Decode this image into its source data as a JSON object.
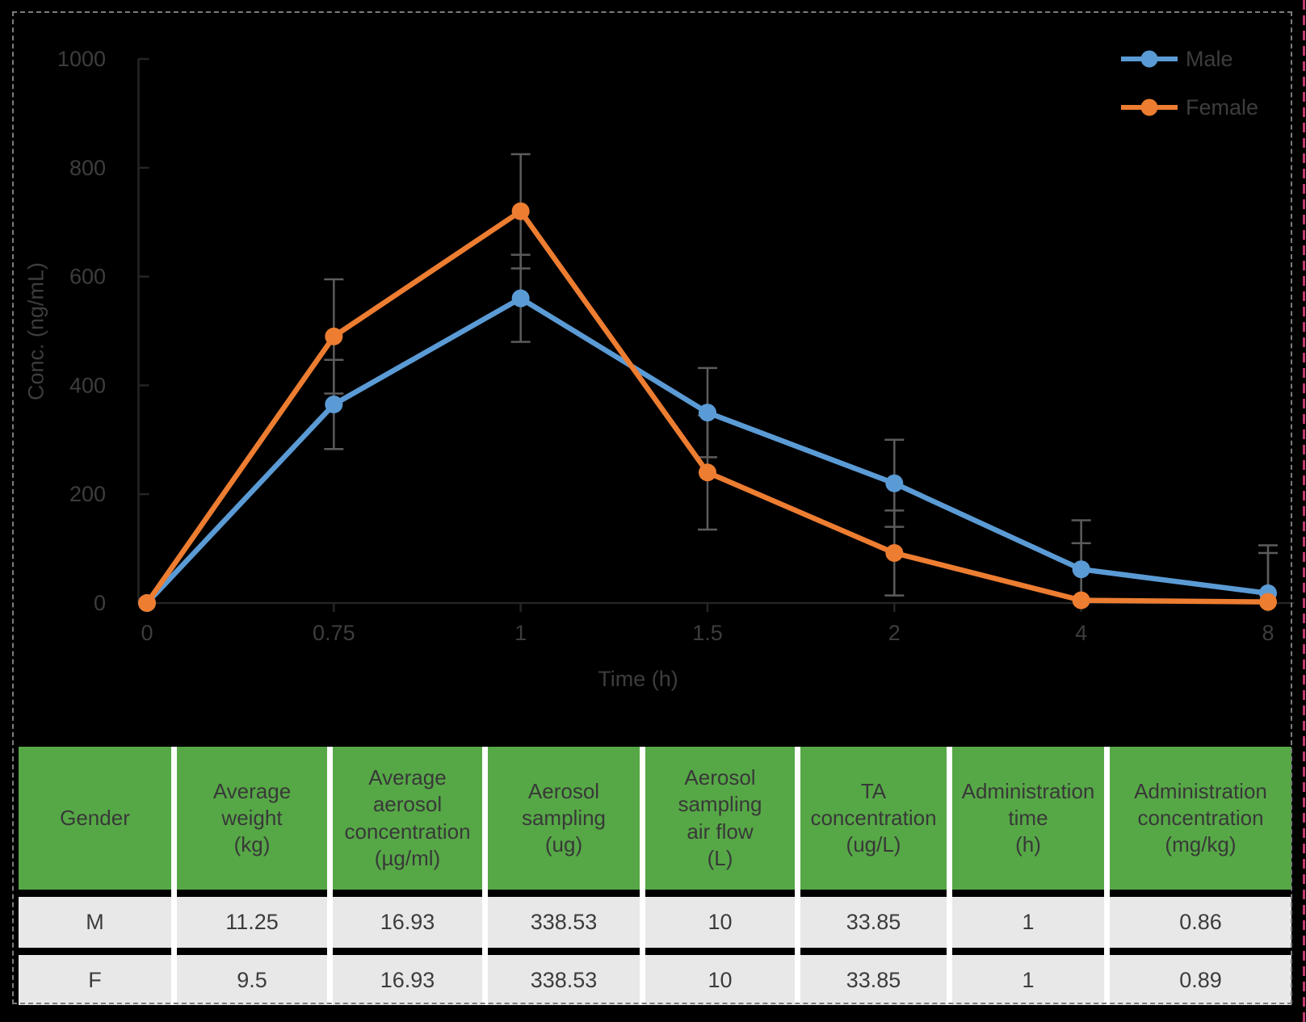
{
  "page": {
    "background_color": "#000000",
    "dashed_border_color": "#7c7c7c",
    "right_edge_line_color": "#c23a6e"
  },
  "chart_data": {
    "type": "line",
    "title": "",
    "xlabel": "Time (h)",
    "ylabel": "Conc. (ng/mL)",
    "categories": [
      "0",
      "0.75",
      "1",
      "1.5",
      "2",
      "4",
      "8"
    ],
    "yticks": [
      0,
      200,
      400,
      600,
      800,
      1000
    ],
    "ylim": [
      0,
      1000
    ],
    "grid": false,
    "legend_position": "top-right",
    "marker": "circle",
    "axis_color": "#252525",
    "tick_label_color": "#3d3d3d",
    "error_bar_color": "#5c5c5c",
    "series": [
      {
        "name": "Male",
        "color": "#5b9bd5",
        "values": [
          0,
          365,
          560,
          350,
          220,
          62,
          18
        ],
        "errors": [
          0,
          82,
          80,
          82,
          80,
          90,
          88
        ]
      },
      {
        "name": "Female",
        "color": "#ed7d31",
        "values": [
          0,
          490,
          720,
          240,
          92,
          5,
          2
        ],
        "errors": [
          0,
          105,
          105,
          105,
          78,
          105,
          90
        ]
      }
    ]
  },
  "table": {
    "header_bg_color": "#56a846",
    "row_bg_color": "#e8e8e8",
    "separator_color": "#ffffff",
    "columns": [
      "Gender",
      "Average\nweight\n(kg)",
      "Average\naerosol\nconcentration\n(µg/ml)",
      "Aerosol\nsampling\n(ug)",
      "Aerosol\nsampling\nair flow\n(L)",
      "TA\nconcentration\n(ug/L)",
      "Administration\ntime\n(h)",
      "Administration\nconcentration\n(mg/kg)"
    ],
    "rows": [
      [
        "M",
        "11.25",
        "16.93",
        "338.53",
        "10",
        "33.85",
        "1",
        "0.86"
      ],
      [
        "F",
        "9.5",
        "16.93",
        "338.53",
        "10",
        "33.85",
        "1",
        "0.89"
      ]
    ]
  }
}
